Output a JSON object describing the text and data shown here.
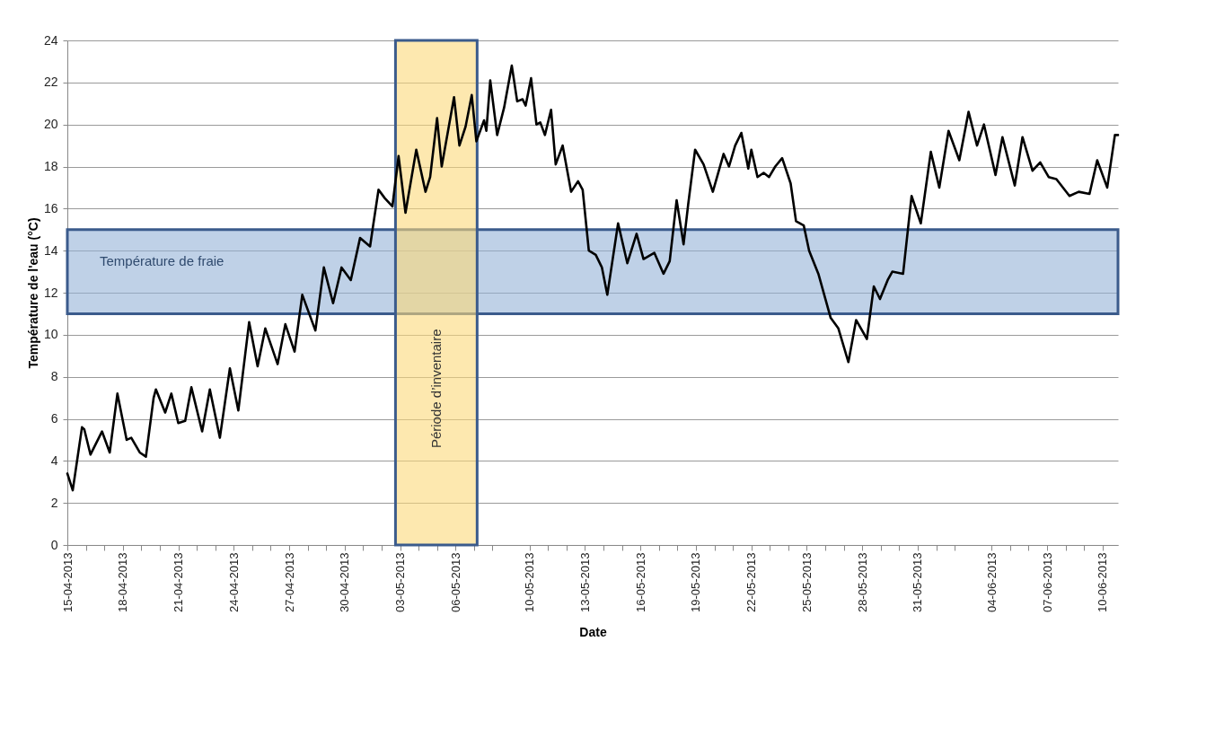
{
  "chart_data": {
    "type": "line",
    "xlabel": "Date",
    "ylabel": "Température de l'eau (°C)",
    "x": [
      "2013-04-15T00:00",
      "2013-04-15T07:00",
      "2013-04-15T19:00",
      "2013-04-15T22:00",
      "2013-04-16T06:00",
      "2013-04-16T21:00",
      "2013-04-17T07:00",
      "2013-04-17T17:00",
      "2013-04-18T05:00",
      "2013-04-18T11:00",
      "2013-04-18T22:00",
      "2013-04-19T06:00",
      "2013-04-19T16:00",
      "2013-04-19T19:00",
      "2013-04-20T07:00",
      "2013-04-20T15:00",
      "2013-04-21T00:00",
      "2013-04-21T09:00",
      "2013-04-21T17:00",
      "2013-04-22T07:00",
      "2013-04-22T17:00",
      "2013-04-23T06:00",
      "2013-04-23T19:00",
      "2013-04-24T06:00",
      "2013-04-24T20:00",
      "2013-04-25T07:00",
      "2013-04-25T17:00",
      "2013-04-26T09:00",
      "2013-04-26T19:00",
      "2013-04-27T07:00",
      "2013-04-27T17:00",
      "2013-04-28T10:00",
      "2013-04-28T21:00",
      "2013-04-29T09:00",
      "2013-04-29T20:00",
      "2013-04-30T08:00",
      "2013-04-30T20:00",
      "2013-05-01T09:00",
      "2013-05-01T13:00",
      "2013-05-01T20:00",
      "2013-05-02T04:00",
      "2013-05-02T14:00",
      "2013-05-02T22:00",
      "2013-05-03T07:00",
      "2013-05-03T21:00",
      "2013-05-04T09:00",
      "2013-05-04T15:00",
      "2013-05-05T00:00",
      "2013-05-05T06:00",
      "2013-05-05T22:00",
      "2013-05-06T05:00",
      "2013-05-06T13:00",
      "2013-05-06T21:00",
      "2013-05-07T03:00",
      "2013-05-07T13:00",
      "2013-05-07T16:00",
      "2013-05-07T21:00",
      "2013-05-08T06:00",
      "2013-05-08T15:00",
      "2013-05-09T01:00",
      "2013-05-09T08:00",
      "2013-05-09T15:00",
      "2013-05-09T19:00",
      "2013-05-10T02:00",
      "2013-05-10T09:00",
      "2013-05-10T14:00",
      "2013-05-10T20:00",
      "2013-05-11T04:00",
      "2013-05-11T10:00",
      "2013-05-11T19:00",
      "2013-05-12T06:00",
      "2013-05-12T15:00",
      "2013-05-12T21:00",
      "2013-05-13T05:00",
      "2013-05-13T14:00",
      "2013-05-13T22:00",
      "2013-05-14T05:00",
      "2013-05-14T19:00",
      "2013-05-15T07:00",
      "2013-05-15T19:00",
      "2013-05-16T04:00",
      "2013-05-16T18:00",
      "2013-05-17T06:00",
      "2013-05-17T14:00",
      "2013-05-17T23:00",
      "2013-05-18T08:00",
      "2013-05-18T14:00",
      "2013-05-18T23:00",
      "2013-05-19T10:00",
      "2013-05-19T22:00",
      "2013-05-20T12:00",
      "2013-05-20T19:00",
      "2013-05-21T03:00",
      "2013-05-21T11:00",
      "2013-05-21T20:00",
      "2013-05-22T00:00",
      "2013-05-22T08:00",
      "2013-05-22T16:00",
      "2013-05-22T23:00",
      "2013-05-23T07:00",
      "2013-05-23T16:00",
      "2013-05-24T03:00",
      "2013-05-24T10:00",
      "2013-05-24T20:00",
      "2013-05-25T03:00",
      "2013-05-25T15:00",
      "2013-05-26T07:00",
      "2013-05-26T17:00",
      "2013-05-27T06:00",
      "2013-05-27T16:00",
      "2013-05-28T06:00",
      "2013-05-28T15:00",
      "2013-05-28T23:00",
      "2013-05-29T09:00",
      "2013-05-29T15:00",
      "2013-05-30T05:00",
      "2013-05-30T16:00",
      "2013-05-31T04:00",
      "2013-05-31T17:00",
      "2013-06-01T04:00",
      "2013-06-01T16:00",
      "2013-06-02T06:00",
      "2013-06-02T18:00",
      "2013-06-03T05:00",
      "2013-06-03T14:00",
      "2013-06-04T05:00",
      "2013-06-04T14:00",
      "2013-06-05T06:00",
      "2013-06-05T16:00",
      "2013-06-06T05:00",
      "2013-06-06T15:00",
      "2013-06-07T02:00",
      "2013-06-07T12:00",
      "2013-06-08T05:00",
      "2013-06-08T17:00",
      "2013-06-09T07:00",
      "2013-06-09T17:00",
      "2013-06-10T06:00",
      "2013-06-10T16:00",
      "2013-06-10T20:00"
    ],
    "series": [
      {
        "color": "#000000",
        "values": [
          3.4,
          2.6,
          5.6,
          5.5,
          4.3,
          5.4,
          4.4,
          7.2,
          5.0,
          5.1,
          4.4,
          4.2,
          7.0,
          7.4,
          6.3,
          7.2,
          5.8,
          5.9,
          7.5,
          5.4,
          7.4,
          5.1,
          8.4,
          6.4,
          10.6,
          8.5,
          10.3,
          8.6,
          10.5,
          9.2,
          11.9,
          10.2,
          13.2,
          11.5,
          13.2,
          12.6,
          14.6,
          14.2,
          15.2,
          16.9,
          16.5,
          16.1,
          18.5,
          15.8,
          18.8,
          16.8,
          17.5,
          20.3,
          18.0,
          21.3,
          19.0,
          19.9,
          21.4,
          19.2,
          20.2,
          19.7,
          22.1,
          19.5,
          20.8,
          22.8,
          21.1,
          21.2,
          20.9,
          22.2,
          20.0,
          20.1,
          19.5,
          20.7,
          18.1,
          19.0,
          16.8,
          17.3,
          16.9,
          14.0,
          13.8,
          13.2,
          11.9,
          15.3,
          13.4,
          14.8,
          13.6,
          13.9,
          12.9,
          13.5,
          16.4,
          14.3,
          16.2,
          18.8,
          18.1,
          16.8,
          18.6,
          18.0,
          19.0,
          19.6,
          17.9,
          18.8,
          17.5,
          17.7,
          17.5,
          18.0,
          18.4,
          17.2,
          15.4,
          15.2,
          14.0,
          12.9,
          10.8,
          10.3,
          8.7,
          10.7,
          9.8,
          12.3,
          11.7,
          12.6,
          13.0,
          12.9,
          16.6,
          15.3,
          18.7,
          17.0,
          19.7,
          18.3,
          20.6,
          19.0,
          20.0,
          17.6,
          19.4,
          17.1,
          19.4,
          17.8,
          18.2,
          17.5,
          17.4,
          16.6,
          16.8,
          16.7,
          18.3,
          17.0,
          19.5,
          19.5
        ]
      }
    ],
    "xlim": [
      "2013-04-15",
      "2013-06-10T20:00"
    ],
    "ylim": [
      0,
      24
    ],
    "yticks": [
      0,
      2,
      4,
      6,
      8,
      10,
      12,
      14,
      16,
      18,
      20,
      22,
      24
    ],
    "xticks": [
      {
        "value": "2013-04-15",
        "label": "15-04-2013"
      },
      {
        "value": "2013-04-16",
        "label": null
      },
      {
        "value": "2013-04-17",
        "label": null
      },
      {
        "value": "2013-04-18",
        "label": "18-04-2013"
      },
      {
        "value": "2013-04-19",
        "label": null
      },
      {
        "value": "2013-04-20",
        "label": null
      },
      {
        "value": "2013-04-21",
        "label": "21-04-2013"
      },
      {
        "value": "2013-04-22",
        "label": null
      },
      {
        "value": "2013-04-23",
        "label": null
      },
      {
        "value": "2013-04-24",
        "label": "24-04-2013"
      },
      {
        "value": "2013-04-25",
        "label": null
      },
      {
        "value": "2013-04-26",
        "label": null
      },
      {
        "value": "2013-04-27",
        "label": "27-04-2013"
      },
      {
        "value": "2013-04-28",
        "label": null
      },
      {
        "value": "2013-04-29",
        "label": null
      },
      {
        "value": "2013-04-30",
        "label": "30-04-2013"
      },
      {
        "value": "2013-05-01",
        "label": null
      },
      {
        "value": "2013-05-02",
        "label": null
      },
      {
        "value": "2013-05-03",
        "label": "03-05-2013"
      },
      {
        "value": "2013-05-04",
        "label": null
      },
      {
        "value": "2013-05-05",
        "label": null
      },
      {
        "value": "2013-05-06",
        "label": "06-05-2013"
      },
      {
        "value": "2013-05-07",
        "label": null
      },
      {
        "value": "2013-05-08",
        "label": null
      },
      {
        "value": "2013-05-10",
        "label": "10-05-2013"
      },
      {
        "value": "2013-05-11",
        "label": null
      },
      {
        "value": "2013-05-12",
        "label": null
      },
      {
        "value": "2013-05-13",
        "label": "13-05-2013"
      },
      {
        "value": "2013-05-14",
        "label": null
      },
      {
        "value": "2013-05-15",
        "label": null
      },
      {
        "value": "2013-05-16",
        "label": "16-05-2013"
      },
      {
        "value": "2013-05-17",
        "label": null
      },
      {
        "value": "2013-05-18",
        "label": null
      },
      {
        "value": "2013-05-19",
        "label": "19-05-2013"
      },
      {
        "value": "2013-05-20",
        "label": null
      },
      {
        "value": "2013-05-21",
        "label": null
      },
      {
        "value": "2013-05-22",
        "label": "22-05-2013"
      },
      {
        "value": "2013-05-23",
        "label": null
      },
      {
        "value": "2013-05-24",
        "label": null
      },
      {
        "value": "2013-05-25",
        "label": "25-05-2013"
      },
      {
        "value": "2013-05-26",
        "label": null
      },
      {
        "value": "2013-05-27",
        "label": null
      },
      {
        "value": "2013-05-28",
        "label": "28-05-2013"
      },
      {
        "value": "2013-05-29",
        "label": null
      },
      {
        "value": "2013-05-30",
        "label": null
      },
      {
        "value": "2013-05-31",
        "label": "31-05-2013"
      },
      {
        "value": "2013-06-01",
        "label": null
      },
      {
        "value": "2013-06-02",
        "label": null
      },
      {
        "value": "2013-06-04",
        "label": "04-06-2013"
      },
      {
        "value": "2013-06-05",
        "label": null
      },
      {
        "value": "2013-06-06",
        "label": null
      },
      {
        "value": "2013-06-07",
        "label": "07-06-2013"
      },
      {
        "value": "2013-06-08",
        "label": null
      },
      {
        "value": "2013-06-09",
        "label": null
      },
      {
        "value": "2013-06-10",
        "label": "10-06-2013"
      }
    ],
    "grid": "y",
    "bands": [
      {
        "axis": "y",
        "from": 11,
        "to": 15,
        "label": "Température de fraie",
        "color": "#95b3d7"
      },
      {
        "axis": "x",
        "from": "2013-05-02T18:00",
        "to": "2013-05-07T04:00",
        "label": "Période d’inventaire",
        "color": "#fcd97a"
      }
    ]
  }
}
